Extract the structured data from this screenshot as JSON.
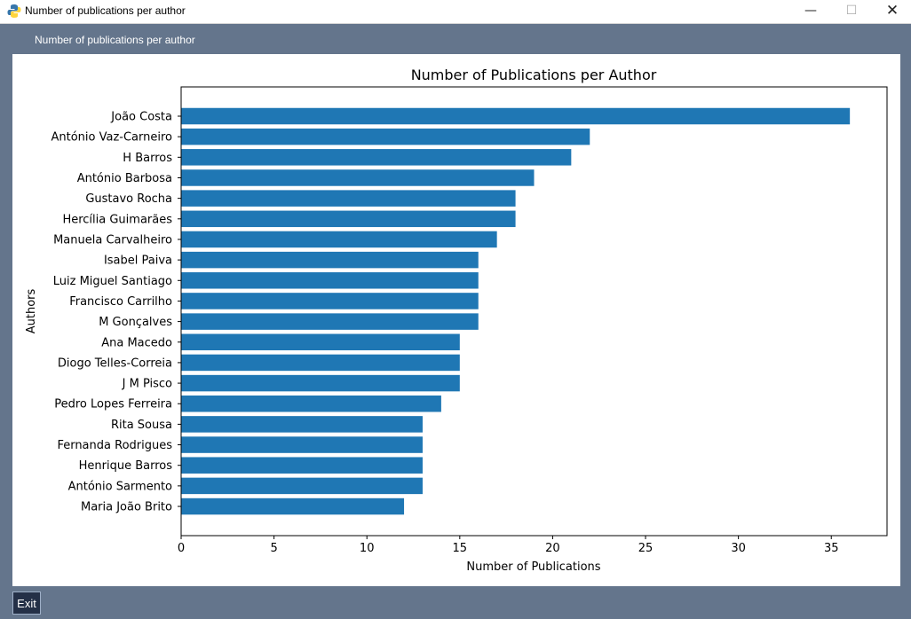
{
  "window": {
    "title": "Number of publications per author",
    "icon": "python-icon",
    "minimize_glyph": "—",
    "maximize_glyph": "☐",
    "close_glyph": "✕"
  },
  "header": {
    "label": "Number of publications per author"
  },
  "chart_data": {
    "type": "bar",
    "orientation": "horizontal",
    "title": "Number of Publications per Author",
    "xlabel": "Number of Publications",
    "ylabel": "Authors",
    "xlim": [
      0,
      38
    ],
    "xticks": [
      0,
      5,
      10,
      15,
      20,
      25,
      30,
      35
    ],
    "grid": false,
    "bar_color": "#1f77b4",
    "categories": [
      "João Costa",
      "António Vaz-Carneiro",
      "H Barros",
      "António Barbosa",
      "Gustavo Rocha",
      "Hercília Guimarães",
      "Manuela Carvalheiro",
      "Isabel Paiva",
      "Luiz Miguel Santiago",
      "Francisco Carrilho",
      "M Gonçalves",
      "Ana Macedo",
      "Diogo Telles-Correia",
      "J M Pisco",
      "Pedro Lopes Ferreira",
      "Rita Sousa",
      "Fernanda Rodrigues",
      "Henrique Barros",
      "António Sarmento",
      "Maria João Brito"
    ],
    "values": [
      36,
      22,
      21,
      19,
      18,
      18,
      17,
      16,
      16,
      16,
      16,
      15,
      15,
      15,
      14,
      13,
      13,
      13,
      13,
      12
    ]
  },
  "footer": {
    "exit_label": "Exit"
  }
}
